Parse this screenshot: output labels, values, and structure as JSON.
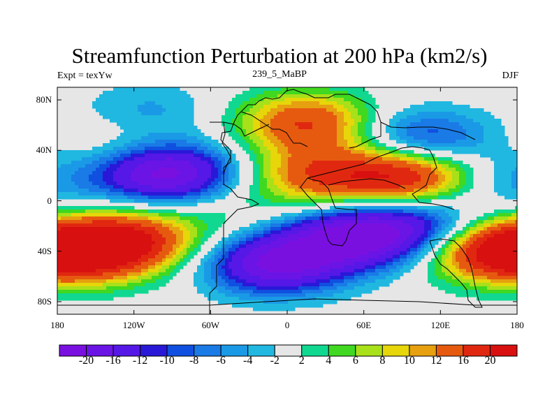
{
  "title": "Streamfunction Perturbation at 200 hPa (km2/s)",
  "subtitle_left": "Expt = texYw",
  "subtitle_center": "239_5_MaBP",
  "subtitle_right": "DJF",
  "lat_ticks": [
    "80N",
    "40N",
    "0",
    "40S",
    "80S"
  ],
  "lon_ticks": [
    "180",
    "120W",
    "60W",
    "0",
    "60E",
    "120E",
    "180"
  ],
  "colorbar": {
    "levels": [
      "-20",
      "-16",
      "-12",
      "-10",
      "-8",
      "-6",
      "-4",
      "-2",
      "2",
      "4",
      "6",
      "8",
      "10",
      "12",
      "16",
      "20"
    ],
    "colors": [
      "#7a10e0",
      "#6a14e6",
      "#5518e6",
      "#2a18d8",
      "#1050e0",
      "#1a7ae6",
      "#1a9ae6",
      "#20b8e0",
      "#e6e6e6",
      "#10d890",
      "#40d820",
      "#a8e01a",
      "#e6d60a",
      "#e6a010",
      "#e65a10",
      "#e02810",
      "#d81010"
    ]
  },
  "chart_data": {
    "type": "heatmap",
    "title": "Streamfunction Perturbation at 200 hPa (km2/s)",
    "units": "km2/s",
    "x_range": [
      -180,
      180
    ],
    "y_range": [
      -90,
      90
    ],
    "levels": [
      -20,
      -16,
      -12,
      -10,
      -8,
      -6,
      -4,
      -2,
      2,
      4,
      6,
      8,
      10,
      12,
      16,
      20
    ],
    "features": [
      {
        "lon": -95,
        "lat": 22,
        "value": -22
      },
      {
        "lon": -155,
        "lat": -40,
        "value": 18
      },
      {
        "lon": -120,
        "lat": -30,
        "value": 14
      },
      {
        "lon": -45,
        "lat": -10,
        "value": 3
      },
      {
        "lon": -10,
        "lat": -50,
        "value": -20
      },
      {
        "lon": 50,
        "lat": -30,
        "value": -20
      },
      {
        "lon": 100,
        "lat": -20,
        "value": -12
      },
      {
        "lon": 95,
        "lat": 20,
        "value": 20
      },
      {
        "lon": 25,
        "lat": 20,
        "value": 14
      },
      {
        "lon": 15,
        "lat": 62,
        "value": 16
      },
      {
        "lon": 105,
        "lat": 48,
        "value": -12
      },
      {
        "lon": -110,
        "lat": 70,
        "value": -5
      },
      {
        "lon": 160,
        "lat": -40,
        "value": 18
      },
      {
        "lon": 170,
        "lat": 15,
        "value": -5
      },
      {
        "lon": -130,
        "lat": 45,
        "value": 4
      }
    ]
  }
}
